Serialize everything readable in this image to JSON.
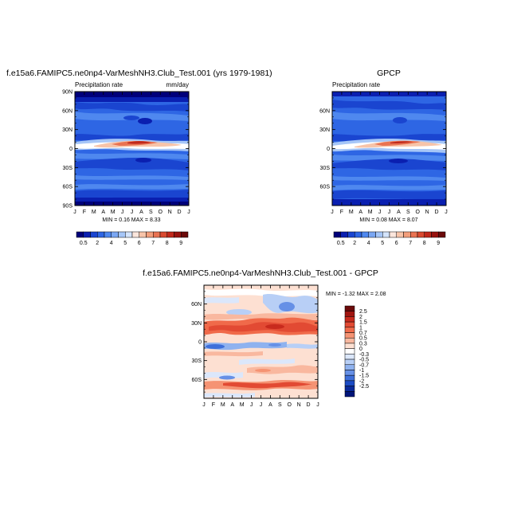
{
  "chart_data": [
    {
      "type": "heatmap",
      "title": "f.e15a6.FAMIPC5.ne0np4-VarMeshNH3.Club_Test.001 (yrs 1979-1981)",
      "left_subtitle": "Precipitation rate",
      "right_subtitle": "mm/day",
      "stats": "MIN =  0.16 MAX =  8.33",
      "x_ticks": [
        "J",
        "F",
        "M",
        "A",
        "M",
        "J",
        "J",
        "A",
        "S",
        "O",
        "N",
        "D",
        "J"
      ],
      "y_ticks": [
        "90N",
        "60N",
        "30N",
        "0",
        "30S",
        "60S",
        "90S"
      ],
      "colorbar_labels": [
        "0.5",
        "2",
        "4",
        "5",
        "6",
        "7",
        "8",
        "9"
      ],
      "colorbar_colors": [
        "#00007a",
        "#0a1fb0",
        "#1a45d0",
        "#2e66e4",
        "#4f88ef",
        "#7aa7f3",
        "#a6c6f7",
        "#d4e4fb",
        "#fbe6dc",
        "#f7c4a9",
        "#f29e7b",
        "#e97352",
        "#d94a30",
        "#c0281b",
        "#98120f",
        "#6b0a0a"
      ]
    },
    {
      "type": "heatmap",
      "title": "GPCP",
      "left_subtitle": "Precipitation rate",
      "stats": "MIN =  0.08 MAX =  8.07",
      "x_ticks": [
        "J",
        "F",
        "M",
        "A",
        "M",
        "J",
        "J",
        "A",
        "S",
        "O",
        "N",
        "D",
        "J"
      ],
      "y_ticks": [
        "60N",
        "30N",
        "0",
        "30S",
        "60S"
      ],
      "colorbar_labels": [
        "0.5",
        "2",
        "4",
        "5",
        "6",
        "7",
        "8",
        "9"
      ],
      "colorbar_colors": [
        "#00007a",
        "#0a1fb0",
        "#1a45d0",
        "#2e66e4",
        "#4f88ef",
        "#7aa7f3",
        "#a6c6f7",
        "#d4e4fb",
        "#fbe6dc",
        "#f7c4a9",
        "#f29e7b",
        "#e97352",
        "#d94a30",
        "#c0281b",
        "#98120f",
        "#6b0a0a"
      ]
    },
    {
      "type": "heatmap",
      "title": "f.e15a6.FAMIPC5.ne0np4-VarMeshNH3.Club_Test.001 - GPCP",
      "stats": "MIN = -1.32 MAX =  2.08",
      "x_ticks": [
        "J",
        "F",
        "M",
        "A",
        "M",
        "J",
        "J",
        "A",
        "S",
        "O",
        "N",
        "D",
        "J"
      ],
      "y_ticks": [
        "60N",
        "30N",
        "0",
        "30S",
        "60S"
      ],
      "colorbar_labels": [
        "2.5",
        "2",
        "1.5",
        "1",
        "0.7",
        "0.5",
        "0.3",
        "0",
        "-0.3",
        "-0.5",
        "-0.7",
        "-1",
        "-1.5",
        "-2",
        "-2.5"
      ],
      "colorbar_colors": [
        "#6b0a0a",
        "#a01510",
        "#c82a1d",
        "#e24a33",
        "#f06a4a",
        "#f59373",
        "#f9b89f",
        "#fde0d2",
        "#ffffff",
        "#dbe7fb",
        "#b8cff6",
        "#8fb2ef",
        "#6690e6",
        "#3e6fda",
        "#1c4bc4",
        "#0a2a9a",
        "#00157a"
      ]
    }
  ]
}
